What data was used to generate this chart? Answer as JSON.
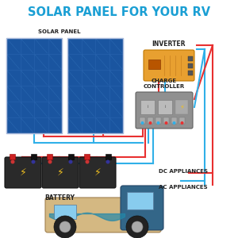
{
  "title": "SOLAR PANEL FOR YOUR RV",
  "title_color": "#1a9fd4",
  "title_fontsize": 10.5,
  "bg_color": "#ffffff",
  "label_solar": "SOLAR PANEL",
  "label_battery": "BATTERY",
  "label_inverter": "INVERTER",
  "label_charge": "CHARGE\nCONTROLLER",
  "label_dc": "DC APPLIANCES",
  "label_ac": "AC APPLIANCES",
  "solar_dark": "#1a55a0",
  "solar_light": "#5090d0",
  "solar_grid": "#2a65b0",
  "inverter_color": "#e8a030",
  "inverter_edge": "#c07800",
  "charge_ctrl_color": "#909090",
  "charge_ctrl_edge": "#606060",
  "battery_color": "#2a2a2a",
  "wire_red": "#e83030",
  "wire_blue": "#30b0e8",
  "bolt_color": "#f0c020",
  "rv_body": "#d4b882",
  "rv_cab": "#336688",
  "rv_window": "#88ccee",
  "rv_wave": "#2288aa",
  "rv_wheel": "#222222"
}
